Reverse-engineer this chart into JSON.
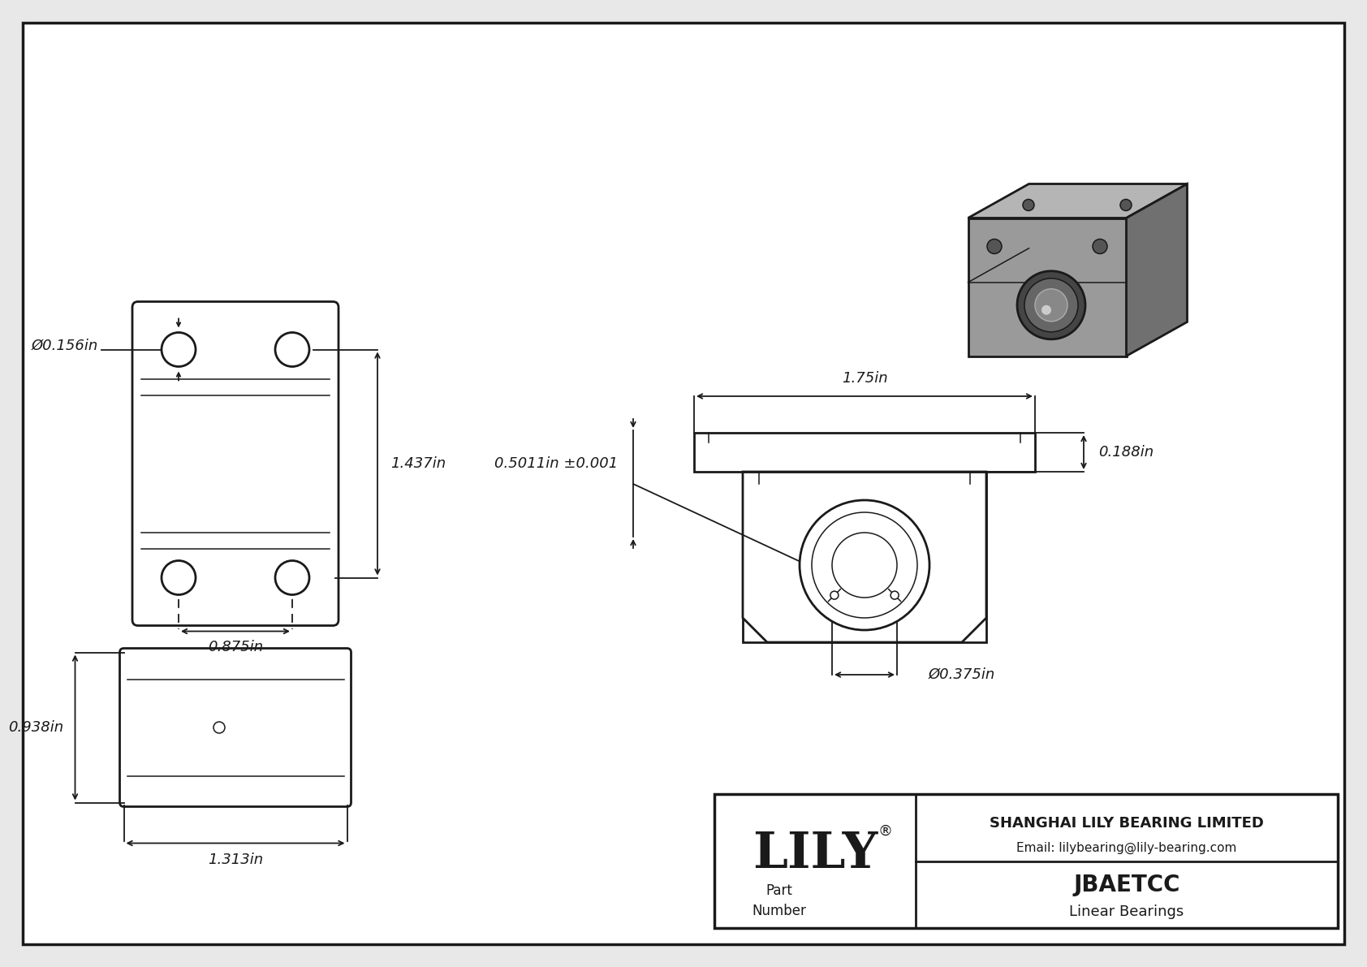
{
  "bg_color": "#e8e8e8",
  "paper_color": "#ffffff",
  "line_color": "#1a1a1a",
  "company": "SHANGHAI LILY BEARING LIMITED",
  "email": "Email: lilybearing@lily-bearing.com",
  "part_number": "JBAETCC",
  "part_type": "Linear Bearings",
  "logo_text": "LILY",
  "logo_reg": "®",
  "dim_hole": "Ø0.156in",
  "dim_width_front": "0.875in",
  "dim_height_front": "1.437in",
  "dim_width_side": "1.313in",
  "dim_height_side": "0.938in",
  "dim_width_top": "1.75in",
  "dim_flange": "0.188in",
  "dim_bore": "0.5011in ±0.001",
  "dim_inner": "Ø0.375in"
}
